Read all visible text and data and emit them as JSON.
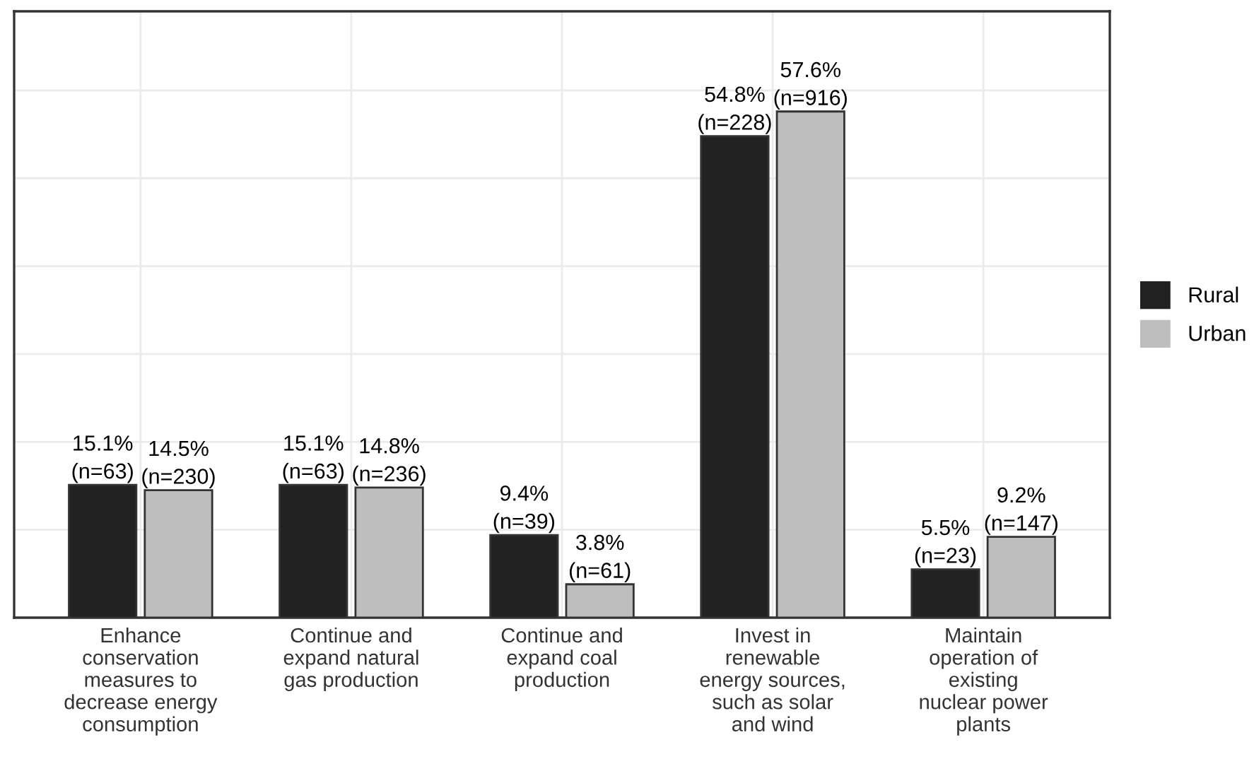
{
  "chart_data": {
    "type": "bar",
    "categories": [
      "Enhance\nconservation\nmeasures to\ndecrease energy\nconsumption",
      "Continue and\nexpand natural\ngas production",
      "Continue and\nexpand coal\nproduction",
      "Invest in\nrenewable\nenergy sources,\nsuch as solar\nand wind",
      "Maintain\noperation of\nexisting\nnuclear power\nplants"
    ],
    "series": [
      {
        "name": "Rural",
        "color": "#222222",
        "values": [
          15.1,
          15.1,
          9.4,
          54.8,
          5.5
        ],
        "value_labels": [
          "15.1%\n(n=63)",
          "15.1%\n(n=63)",
          "9.4%\n(n=39)",
          "54.8%\n(n=228)",
          "5.5%\n(n=23)"
        ]
      },
      {
        "name": "Urban",
        "color": "#bebebe",
        "values": [
          14.5,
          14.8,
          3.8,
          57.6,
          9.2
        ],
        "value_labels": [
          "14.5%\n(n=230)",
          "14.8%\n(n=236)",
          "3.8%\n(n=61)",
          "57.6%\n(n=916)",
          "9.2%\n(n=147)"
        ]
      }
    ],
    "ylim": [
      0,
      69
    ],
    "yticks": [
      {
        "value": 0,
        "label": null
      },
      {
        "value": 10,
        "label": null
      },
      {
        "value": 20,
        "label": null
      },
      {
        "value": 30,
        "label": null
      },
      {
        "value": 40,
        "label": null
      },
      {
        "value": 50,
        "label": null
      },
      {
        "value": 60,
        "label": null
      }
    ],
    "tick_labels": "x",
    "grid": true,
    "legend": "right"
  }
}
